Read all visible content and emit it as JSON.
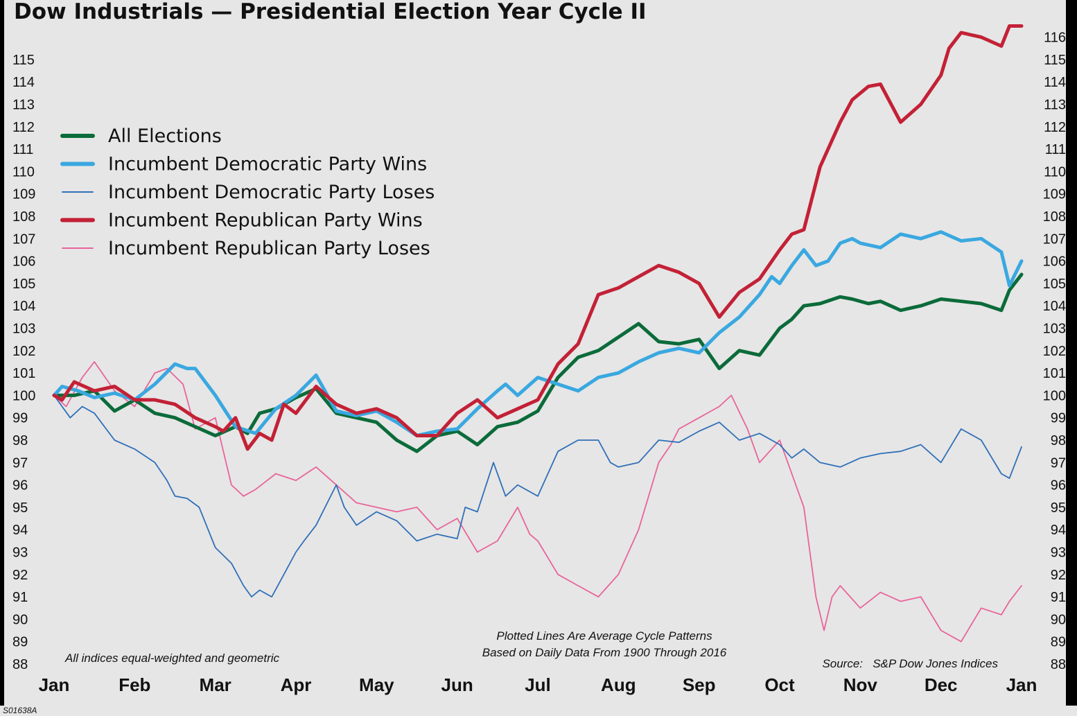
{
  "chart_data": {
    "type": "line",
    "title": "Dow Industrials — Presidential Election Year Cycle II",
    "x_ticks": [
      "Jan",
      "Feb",
      "Mar",
      "Apr",
      "May",
      "Jun",
      "Jul",
      "Aug",
      "Sep",
      "Oct",
      "Nov",
      "Dec",
      "Jan"
    ],
    "y_left_ticks": [
      "88",
      "89",
      "90",
      "91",
      "92",
      "93",
      "94",
      "95",
      "96",
      "97",
      "98",
      "99",
      "100",
      "101",
      "102",
      "103",
      "104",
      "105",
      "106",
      "107",
      "108",
      "109",
      "110",
      "111",
      "112",
      "113",
      "114",
      "115"
    ],
    "y_right_ticks": [
      "88",
      "89",
      "90",
      "91",
      "92",
      "93",
      "94",
      "95",
      "96",
      "97",
      "98",
      "99",
      "100",
      "101",
      "102",
      "103",
      "104",
      "105",
      "106",
      "107",
      "108",
      "109",
      "110",
      "111",
      "112",
      "113",
      "114",
      "115",
      "116"
    ],
    "ylim": [
      88,
      116.5
    ],
    "xlim": [
      0,
      12
    ],
    "legend": [
      "All Elections",
      "Incumbent Democratic Party Wins",
      "Incumbent Democratic Party Loses",
      "Incumbent Republican Party Wins",
      "Incumbent Republican Party Loses"
    ],
    "series": [
      {
        "name": "All Elections",
        "color": "#0b6b3a",
        "width": 5,
        "x": [
          0,
          0.25,
          0.5,
          0.75,
          1.0,
          1.25,
          1.5,
          1.75,
          2.0,
          2.25,
          2.4,
          2.55,
          2.75,
          3.0,
          3.25,
          3.5,
          3.75,
          4.0,
          4.25,
          4.5,
          4.75,
          5.0,
          5.25,
          5.5,
          5.75,
          6.0,
          6.25,
          6.5,
          6.75,
          7.0,
          7.25,
          7.5,
          7.75,
          8.0,
          8.25,
          8.5,
          8.75,
          9.0,
          9.15,
          9.3,
          9.5,
          9.75,
          9.9,
          10.1,
          10.25,
          10.5,
          10.75,
          11.0,
          11.25,
          11.5,
          11.75,
          11.85,
          12.0
        ],
        "y": [
          100,
          100,
          100.2,
          99.3,
          99.8,
          99.2,
          99.0,
          98.6,
          98.2,
          98.6,
          98.3,
          99.2,
          99.4,
          99.9,
          100.3,
          99.2,
          99.0,
          98.8,
          98.0,
          97.5,
          98.2,
          98.4,
          97.8,
          98.6,
          98.8,
          99.3,
          100.8,
          101.7,
          102.0,
          102.6,
          103.2,
          102.4,
          102.3,
          102.5,
          101.2,
          102.0,
          101.8,
          103.0,
          103.4,
          104.0,
          104.1,
          104.4,
          104.3,
          104.1,
          104.2,
          103.8,
          104.0,
          104.3,
          104.2,
          104.1,
          103.8,
          104.7,
          105.4
        ]
      },
      {
        "name": "Incumbent Democratic Party Wins",
        "color": "#3aa8e0",
        "width": 5,
        "x": [
          0,
          0.1,
          0.3,
          0.5,
          0.75,
          1.0,
          1.25,
          1.5,
          1.65,
          1.75,
          2.0,
          2.25,
          2.5,
          2.75,
          3.0,
          3.25,
          3.5,
          3.75,
          4.0,
          4.25,
          4.5,
          4.75,
          5.0,
          5.25,
          5.5,
          5.6,
          5.75,
          6.0,
          6.25,
          6.5,
          6.75,
          7.0,
          7.25,
          7.5,
          7.75,
          8.0,
          8.25,
          8.5,
          8.75,
          8.9,
          9.0,
          9.15,
          9.3,
          9.45,
          9.6,
          9.75,
          9.9,
          10.0,
          10.25,
          10.5,
          10.75,
          11.0,
          11.25,
          11.5,
          11.75,
          11.85,
          12.0
        ],
        "y": [
          100,
          100.4,
          100.2,
          99.9,
          100.1,
          99.8,
          100.5,
          101.4,
          101.2,
          101.2,
          100.0,
          98.6,
          98.3,
          99.4,
          100.0,
          100.9,
          99.3,
          99.1,
          99.3,
          98.8,
          98.2,
          98.4,
          98.5,
          99.4,
          100.2,
          100.5,
          100.0,
          100.8,
          100.5,
          100.2,
          100.8,
          101.0,
          101.5,
          101.9,
          102.1,
          101.9,
          102.8,
          103.5,
          104.5,
          105.3,
          105.0,
          105.8,
          106.5,
          105.8,
          106.0,
          106.8,
          107.0,
          106.8,
          106.6,
          107.2,
          107.0,
          107.3,
          106.9,
          107.0,
          106.4,
          104.9,
          106.0
        ]
      },
      {
        "name": "Incumbent Democratic Party Loses",
        "color": "#2f6fb8",
        "width": 1.8,
        "x": [
          0,
          0.2,
          0.35,
          0.5,
          0.75,
          1.0,
          1.25,
          1.4,
          1.5,
          1.65,
          1.8,
          2.0,
          2.2,
          2.35,
          2.45,
          2.55,
          2.7,
          2.85,
          3.0,
          3.1,
          3.25,
          3.5,
          3.6,
          3.75,
          4.0,
          4.25,
          4.5,
          4.75,
          5.0,
          5.1,
          5.25,
          5.45,
          5.6,
          5.75,
          6.0,
          6.25,
          6.5,
          6.75,
          6.9,
          7.0,
          7.25,
          7.5,
          7.75,
          8.0,
          8.25,
          8.5,
          8.75,
          9.0,
          9.15,
          9.3,
          9.5,
          9.75,
          10.0,
          10.25,
          10.5,
          10.75,
          11.0,
          11.25,
          11.5,
          11.75,
          11.85,
          12.0
        ],
        "y": [
          100,
          99.0,
          99.5,
          99.2,
          98.0,
          97.6,
          97.0,
          96.2,
          95.5,
          95.4,
          95.0,
          93.2,
          92.5,
          91.5,
          91.0,
          91.3,
          91.0,
          92.0,
          93.0,
          93.5,
          94.2,
          96.0,
          95.0,
          94.2,
          94.8,
          94.4,
          93.5,
          93.8,
          93.6,
          95.0,
          94.8,
          97.0,
          95.5,
          96.0,
          95.5,
          97.5,
          98.0,
          98.0,
          97.0,
          96.8,
          97.0,
          98.0,
          97.9,
          98.4,
          98.8,
          98.0,
          98.3,
          97.8,
          97.2,
          97.6,
          97.0,
          96.8,
          97.2,
          97.4,
          97.5,
          97.8,
          97.0,
          98.5,
          98.0,
          96.5,
          96.3,
          97.7
        ]
      },
      {
        "name": "Incumbent Republican Party Wins",
        "color": "#c32136",
        "width": 5,
        "x": [
          0,
          0.1,
          0.25,
          0.5,
          0.75,
          1.0,
          1.25,
          1.5,
          1.75,
          2.0,
          2.1,
          2.25,
          2.4,
          2.55,
          2.7,
          2.85,
          3.0,
          3.25,
          3.5,
          3.75,
          4.0,
          4.25,
          4.5,
          4.75,
          5.0,
          5.25,
          5.5,
          5.75,
          6.0,
          6.25,
          6.5,
          6.75,
          7.0,
          7.25,
          7.5,
          7.75,
          8.0,
          8.25,
          8.5,
          8.75,
          9.0,
          9.15,
          9.3,
          9.5,
          9.75,
          9.9,
          10.1,
          10.25,
          10.5,
          10.75,
          11.0,
          11.1,
          11.25,
          11.5,
          11.75,
          11.85,
          12.0
        ],
        "y": [
          100,
          99.8,
          100.6,
          100.2,
          100.4,
          99.8,
          99.8,
          99.6,
          99.0,
          98.6,
          98.4,
          99.0,
          97.6,
          98.3,
          98.0,
          99.6,
          99.2,
          100.4,
          99.6,
          99.2,
          99.4,
          99.0,
          98.2,
          98.2,
          99.2,
          99.8,
          99.0,
          99.4,
          99.8,
          101.4,
          102.3,
          104.5,
          104.8,
          105.3,
          105.8,
          105.5,
          105.0,
          103.5,
          104.6,
          105.2,
          106.5,
          107.2,
          107.4,
          110.2,
          112.2,
          113.2,
          113.8,
          113.9,
          112.2,
          113.0,
          114.3,
          115.5,
          116.2,
          116.0,
          115.6,
          116.5,
          116.5
        ]
      },
      {
        "name": "Incumbent Republican Party Loses",
        "color": "#e8649a",
        "width": 1.8,
        "x": [
          0,
          0.15,
          0.35,
          0.5,
          0.75,
          1.0,
          1.25,
          1.4,
          1.6,
          1.75,
          2.0,
          2.2,
          2.35,
          2.5,
          2.75,
          3.0,
          3.25,
          3.5,
          3.75,
          4.0,
          4.25,
          4.5,
          4.75,
          5.0,
          5.25,
          5.5,
          5.75,
          5.9,
          6.0,
          6.25,
          6.5,
          6.75,
          7.0,
          7.25,
          7.5,
          7.65,
          7.75,
          8.0,
          8.25,
          8.4,
          8.6,
          8.75,
          9.0,
          9.15,
          9.3,
          9.45,
          9.55,
          9.65,
          9.75,
          10.0,
          10.25,
          10.5,
          10.75,
          11.0,
          11.25,
          11.5,
          11.75,
          11.85,
          12.0
        ],
        "y": [
          100,
          99.5,
          100.8,
          101.5,
          100.2,
          99.5,
          101.0,
          101.2,
          100.5,
          98.5,
          99.0,
          96.0,
          95.5,
          95.8,
          96.5,
          96.2,
          96.8,
          96.0,
          95.2,
          95.0,
          94.8,
          95.0,
          94.0,
          94.5,
          93.0,
          93.5,
          95.0,
          93.8,
          93.5,
          92.0,
          91.5,
          91.0,
          92.0,
          94.0,
          97.0,
          97.8,
          98.5,
          99.0,
          99.5,
          100.0,
          98.5,
          97.0,
          98.0,
          96.5,
          95.0,
          91.0,
          89.5,
          91.0,
          91.5,
          90.5,
          91.2,
          90.8,
          91.0,
          89.5,
          89.0,
          90.5,
          90.2,
          90.8,
          91.5
        ]
      }
    ],
    "annotations": [
      "All indices equal-weighted and geometric",
      "Plotted Lines Are Average Cycle Patterns",
      "Based on Daily Data From 1900 Through 2016",
      "Source:   S&P Dow Jones Indices"
    ]
  },
  "footer": {
    "code": "S01638A"
  }
}
